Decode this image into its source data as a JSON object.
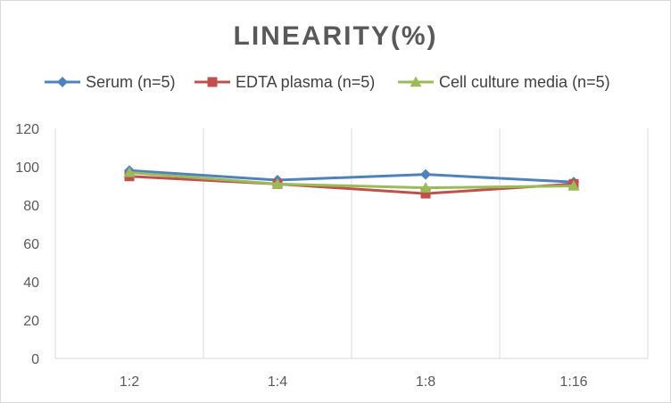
{
  "chart_data": {
    "type": "line",
    "title": "LINEARITY(%)",
    "xlabel": "",
    "ylabel": "",
    "categories": [
      "1:2",
      "1:4",
      "1:8",
      "1:16"
    ],
    "ylim": [
      0,
      120
    ],
    "yticks": [
      0,
      20,
      40,
      60,
      80,
      100,
      120
    ],
    "grid": "vertical",
    "legend_position": "top",
    "series": [
      {
        "name": "Serum (n=5)",
        "values": [
          98,
          93,
          96,
          92
        ],
        "color": "#4f81bd",
        "marker": "diamond"
      },
      {
        "name": "EDTA plasma (n=5)",
        "values": [
          95,
          91,
          86,
          91
        ],
        "color": "#c0504d",
        "marker": "square"
      },
      {
        "name": "Cell culture media (n=5)",
        "values": [
          97,
          91,
          89,
          90
        ],
        "color": "#9bbb59",
        "marker": "triangle"
      }
    ]
  }
}
